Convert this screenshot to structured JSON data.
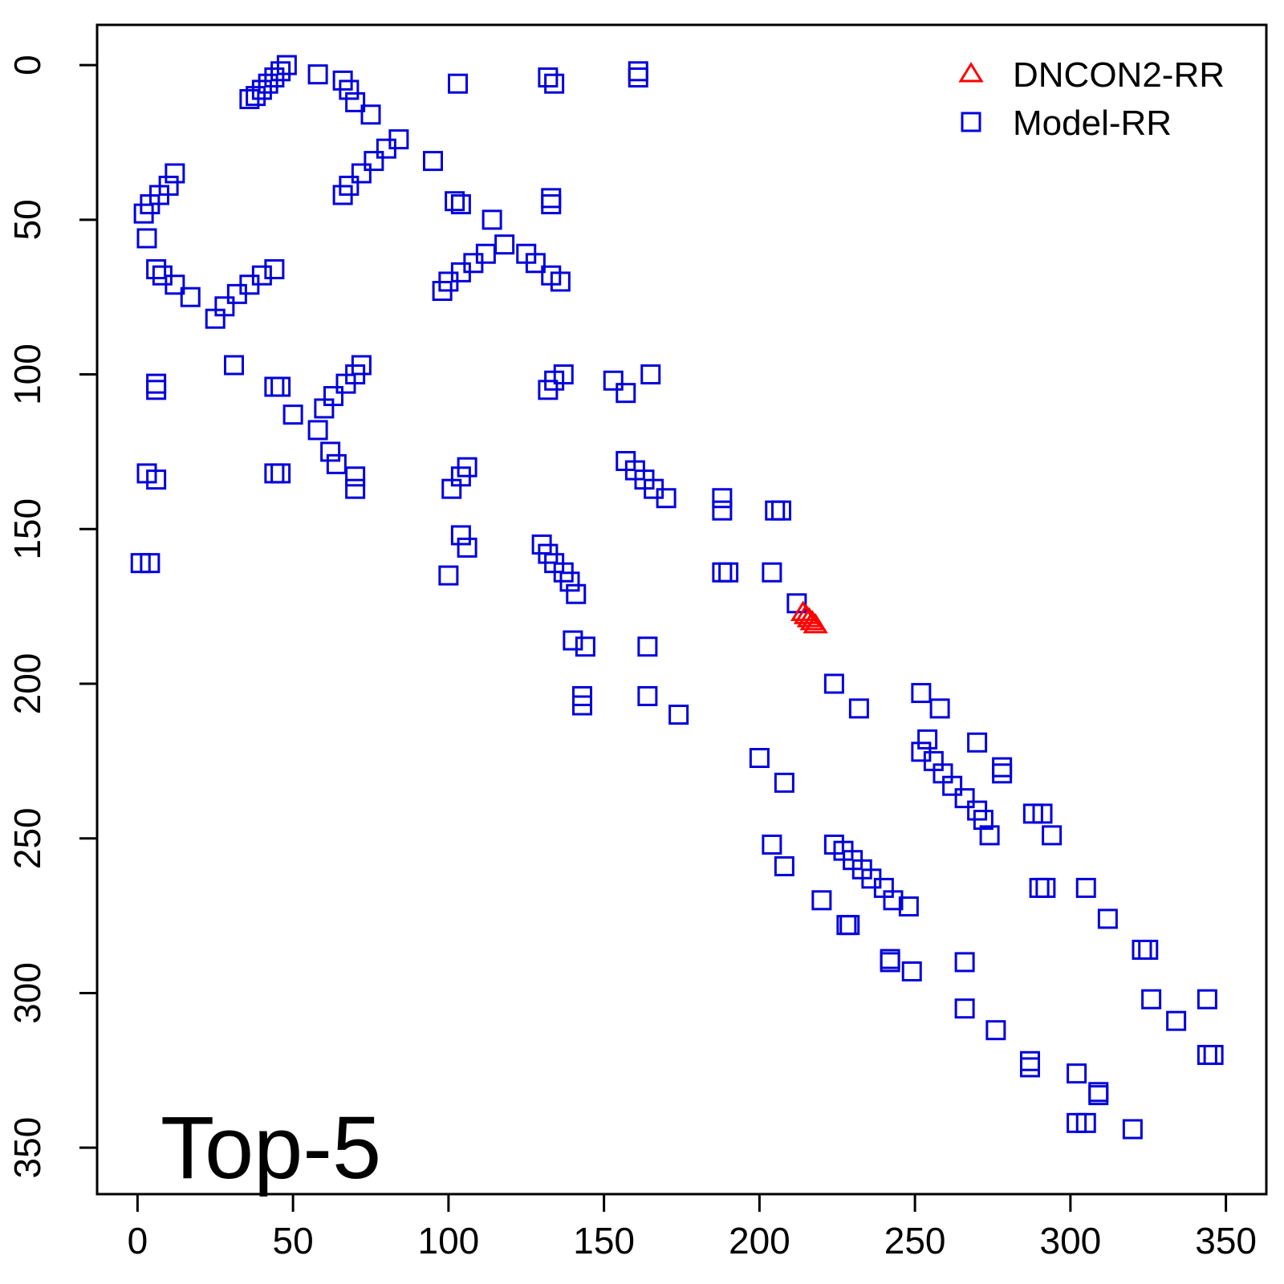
{
  "chart_data": {
    "type": "scatter",
    "title": "",
    "xlabel": "",
    "ylabel": "",
    "xlim": [
      -13,
      363
    ],
    "ylim": [
      -13,
      365
    ],
    "y_inverted": true,
    "grid": false,
    "legend_position": "top-right",
    "x_ticks": [
      0,
      50,
      100,
      150,
      200,
      250,
      300,
      350
    ],
    "y_ticks": [
      0,
      50,
      100,
      150,
      200,
      250,
      300,
      350
    ],
    "annotation": "Top-5",
    "series": [
      {
        "name": "DNCON2-RR",
        "marker": "triangle",
        "color": "#ff0000",
        "points": [
          [
            214,
            177
          ],
          [
            215,
            178
          ],
          [
            216,
            179
          ],
          [
            217,
            180
          ],
          [
            218,
            181
          ]
        ]
      },
      {
        "name": "Model-RR",
        "marker": "square",
        "color": "#0000dd",
        "points": [
          [
            48,
            0
          ],
          [
            46,
            2
          ],
          [
            44,
            4
          ],
          [
            42,
            6
          ],
          [
            40,
            8
          ],
          [
            38,
            10
          ],
          [
            36,
            11
          ],
          [
            58,
            3
          ],
          [
            66,
            5
          ],
          [
            68,
            8
          ],
          [
            70,
            12
          ],
          [
            75,
            16
          ],
          [
            103,
            6
          ],
          [
            132,
            4
          ],
          [
            134,
            6
          ],
          [
            161,
            2
          ],
          [
            161,
            4
          ],
          [
            84,
            24
          ],
          [
            80,
            27
          ],
          [
            76,
            31
          ],
          [
            72,
            35
          ],
          [
            68,
            39
          ],
          [
            66,
            42
          ],
          [
            95,
            31
          ],
          [
            12,
            35
          ],
          [
            10,
            39
          ],
          [
            7,
            42
          ],
          [
            4,
            45
          ],
          [
            2,
            48
          ],
          [
            3,
            56
          ],
          [
            6,
            66
          ],
          [
            8,
            68
          ],
          [
            12,
            71
          ],
          [
            17,
            75
          ],
          [
            102,
            44
          ],
          [
            104,
            45
          ],
          [
            133,
            43
          ],
          [
            133,
            45
          ],
          [
            114,
            50
          ],
          [
            118,
            58
          ],
          [
            112,
            61
          ],
          [
            108,
            64
          ],
          [
            104,
            67
          ],
          [
            100,
            70
          ],
          [
            98,
            73
          ],
          [
            125,
            61
          ],
          [
            128,
            64
          ],
          [
            133,
            68
          ],
          [
            136,
            70
          ],
          [
            44,
            66
          ],
          [
            40,
            68
          ],
          [
            36,
            71
          ],
          [
            32,
            74
          ],
          [
            28,
            78
          ],
          [
            25,
            82
          ],
          [
            31,
            97
          ],
          [
            72,
            97
          ],
          [
            70,
            100
          ],
          [
            67,
            103
          ],
          [
            63,
            107
          ],
          [
            60,
            111
          ],
          [
            58,
            118
          ],
          [
            62,
            125
          ],
          [
            64,
            129
          ],
          [
            70,
            133
          ],
          [
            70,
            137
          ],
          [
            50,
            113
          ],
          [
            44,
            104
          ],
          [
            46,
            104
          ],
          [
            6,
            103
          ],
          [
            6,
            105
          ],
          [
            137,
            100
          ],
          [
            134,
            102
          ],
          [
            132,
            105
          ],
          [
            153,
            102
          ],
          [
            157,
            106
          ],
          [
            165,
            100
          ],
          [
            3,
            132
          ],
          [
            6,
            134
          ],
          [
            44,
            132
          ],
          [
            46,
            132
          ],
          [
            106,
            130
          ],
          [
            104,
            133
          ],
          [
            101,
            137
          ],
          [
            157,
            128
          ],
          [
            160,
            131
          ],
          [
            163,
            134
          ],
          [
            166,
            137
          ],
          [
            170,
            140
          ],
          [
            188,
            140
          ],
          [
            188,
            144
          ],
          [
            205,
            144
          ],
          [
            207,
            144
          ],
          [
            104,
            152
          ],
          [
            106,
            156
          ],
          [
            100,
            165
          ],
          [
            130,
            155
          ],
          [
            132,
            158
          ],
          [
            134,
            161
          ],
          [
            137,
            164
          ],
          [
            139,
            167
          ],
          [
            141,
            171
          ],
          [
            1,
            161
          ],
          [
            4,
            161
          ],
          [
            188,
            164
          ],
          [
            190,
            164
          ],
          [
            204,
            164
          ],
          [
            212,
            174
          ],
          [
            140,
            186
          ],
          [
            144,
            188
          ],
          [
            164,
            188
          ],
          [
            164,
            204
          ],
          [
            143,
            204
          ],
          [
            143,
            207
          ],
          [
            174,
            210
          ],
          [
            224,
            200
          ],
          [
            232,
            208
          ],
          [
            254,
            218
          ],
          [
            252,
            222
          ],
          [
            256,
            225
          ],
          [
            259,
            229
          ],
          [
            262,
            233
          ],
          [
            266,
            237
          ],
          [
            270,
            241
          ],
          [
            272,
            244
          ],
          [
            252,
            203
          ],
          [
            258,
            208
          ],
          [
            270,
            219
          ],
          [
            278,
            227
          ],
          [
            278,
            229
          ],
          [
            200,
            224
          ],
          [
            208,
            232
          ],
          [
            224,
            252
          ],
          [
            227,
            254
          ],
          [
            230,
            257
          ],
          [
            233,
            260
          ],
          [
            236,
            263
          ],
          [
            240,
            266
          ],
          [
            243,
            270
          ],
          [
            248,
            272
          ],
          [
            220,
            270
          ],
          [
            228,
            278
          ],
          [
            229,
            278
          ],
          [
            204,
            252
          ],
          [
            208,
            259
          ],
          [
            288,
            242
          ],
          [
            291,
            242
          ],
          [
            294,
            249
          ],
          [
            274,
            249
          ],
          [
            290,
            266
          ],
          [
            292,
            266
          ],
          [
            305,
            266
          ],
          [
            312,
            276
          ],
          [
            323,
            286
          ],
          [
            325,
            286
          ],
          [
            326,
            302
          ],
          [
            334,
            309
          ],
          [
            344,
            302
          ],
          [
            344,
            320
          ],
          [
            346,
            320
          ],
          [
            242,
            289
          ],
          [
            242,
            290
          ],
          [
            249,
            293
          ],
          [
            266,
            290
          ],
          [
            266,
            305
          ],
          [
            276,
            312
          ],
          [
            287,
            322
          ],
          [
            287,
            324
          ],
          [
            302,
            326
          ],
          [
            309,
            332
          ],
          [
            309,
            333
          ],
          [
            302,
            342
          ],
          [
            305,
            342
          ],
          [
            320,
            344
          ]
        ]
      }
    ]
  }
}
